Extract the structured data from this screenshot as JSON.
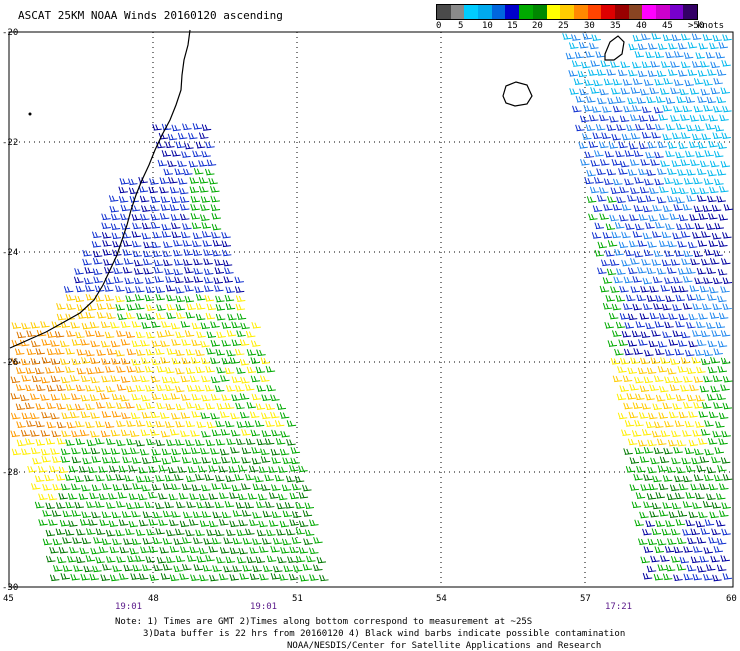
{
  "title": "ASCAT 25KM NOAA Winds 20160120 ascending",
  "legend": {
    "colors": [
      "#4a4a4a",
      "#8a8a8a",
      "#00ccff",
      "#00aaee",
      "#0066dd",
      "#0000cc",
      "#00aa00",
      "#008800",
      "#ffff00",
      "#ffcc00",
      "#ff8800",
      "#ff4400",
      "#dd0000",
      "#990000",
      "#884422",
      "#ff00ff",
      "#cc00cc",
      "#7700cc",
      "#330066"
    ],
    "labels": [
      "0",
      "5",
      "10",
      "15",
      "20",
      "25",
      "30",
      "35",
      "40",
      "45",
      ">50"
    ],
    "units": "knots"
  },
  "axes": {
    "lat_labels": [
      "-20",
      "-22",
      "-24",
      "-26",
      "-28",
      "-30"
    ],
    "lon_labels": [
      "45",
      "48",
      "51",
      "54",
      "57",
      "60"
    ],
    "times": [
      "19:01",
      "19:01",
      "17:21"
    ]
  },
  "notes": {
    "line1": "Note: 1) Times are GMT 2)Times along bottom correspond to measurement at ~25S",
    "line2": "3)Data buffer is 22 hrs from 20160120 4) Black wind barbs indicate possible contamination",
    "line3": "NOAA/NESDIS/Center for Satellite Applications and Research"
  }
}
